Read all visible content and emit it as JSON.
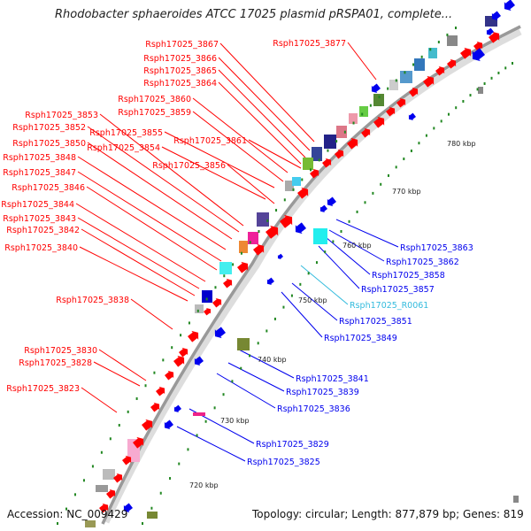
{
  "header": {
    "title": "Rhodobacter sphaeroides ATCC 17025 plasmid pRSPA01, complete..."
  },
  "footer": {
    "accession": "Accession: NC_009429",
    "topology": "Topology: circular; Length: 877,879 bp; Genes: 819"
  },
  "colors": {
    "forward_gene": "#ff0000",
    "reverse_gene": "#0000ee",
    "rna_label": "#33bbdd",
    "backbone": "#999999",
    "tick": "#228822"
  },
  "kbp_ticks": [
    "720 kbp",
    "730 kbp",
    "740 kbp",
    "750 kbp",
    "760 kbp",
    "770 kbp",
    "780 kbp"
  ],
  "labels_forward": [
    "Rsph17025_3867",
    "Rsph17025_3866",
    "Rsph17025_3865",
    "Rsph17025_3864",
    "Rsph17025_3860",
    "Rsph17025_3859",
    "Rsph17025_3853",
    "Rsph17025_3852",
    "Rsph17025_3855",
    "Rsph17025_3850",
    "Rsph17025_3854",
    "Rsph17025_3861",
    "Rsph17025_3848",
    "Rsph17025_3856",
    "Rsph17025_3847",
    "Rsph17025_3846",
    "Rsph17025_3844",
    "Rsph17025_3843",
    "Rsph17025_3842",
    "Rsph17025_3840",
    "Rsph17025_3838",
    "Rsph17025_3830",
    "Rsph17025_3828",
    "Rsph17025_3823",
    "Rsph17025_3877"
  ],
  "labels_reverse": [
    "Rsph17025_3863",
    "Rsph17025_3862",
    "Rsph17025_3858",
    "Rsph17025_3857",
    "Rsph17025_R0061",
    "Rsph17025_3851",
    "Rsph17025_3849",
    "Rsph17025_3841",
    "Rsph17025_3839",
    "Rsph17025_3836",
    "Rsph17025_3829",
    "Rsph17025_3825"
  ]
}
